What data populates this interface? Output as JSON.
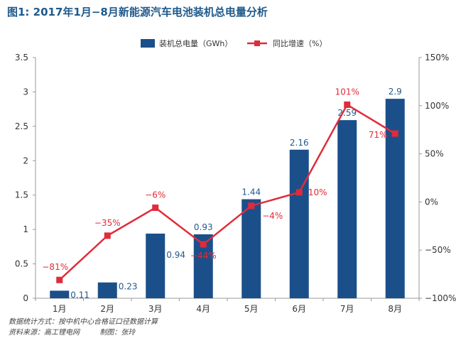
{
  "title": "图1: 2017年1月−8月新能源汽车电池装机总电量分析",
  "notes": {
    "line1": "数据统计方式：按中机中心合格证口径数据计算",
    "line2_source": "资料来源：高工锂电网",
    "line2_author": "制图：张玲"
  },
  "colors": {
    "bar": "#1b4f8a",
    "line": "#e02b3a",
    "bar_label": "#1f5a8c",
    "line_label": "#e02b3a"
  },
  "chart_data": {
    "type": "bar",
    "categories": [
      "1月",
      "2月",
      "3月",
      "4月",
      "5月",
      "6月",
      "7月",
      "8月"
    ],
    "series": [
      {
        "name": "装机总电量（GWh）",
        "type": "bar",
        "axis": "left",
        "values": [
          0.11,
          0.23,
          0.94,
          0.93,
          1.44,
          2.16,
          2.59,
          2.9
        ],
        "labels": [
          "0.11",
          "0.23",
          "0.94",
          "0.93",
          "1.44",
          "2.16",
          "2.59",
          "2.9"
        ]
      },
      {
        "name": "同比增速（%）",
        "type": "line",
        "axis": "right",
        "values": [
          -81,
          -35,
          -6,
          -44,
          -4,
          10,
          101,
          71
        ],
        "labels": [
          "−81%",
          "−35%",
          "−6%",
          "−44%",
          "−4%",
          "10%",
          "101%",
          "71%"
        ]
      }
    ],
    "y_left": {
      "range": [
        0,
        3.5
      ],
      "ticks": [
        0,
        0.5,
        1,
        1.5,
        2,
        2.5,
        3,
        3.5
      ],
      "tick_labels": [
        "0",
        "0.5",
        "1",
        "1.5",
        "2",
        "2.5",
        "3",
        "3.5"
      ]
    },
    "y_right": {
      "range": [
        -100,
        150
      ],
      "ticks": [
        -100,
        -50,
        0,
        50,
        100,
        150
      ],
      "tick_labels": [
        "−100%",
        "−50%",
        "0%",
        "50%",
        "100%",
        "150%"
      ]
    },
    "grid": false,
    "legend_position": "top-center"
  }
}
